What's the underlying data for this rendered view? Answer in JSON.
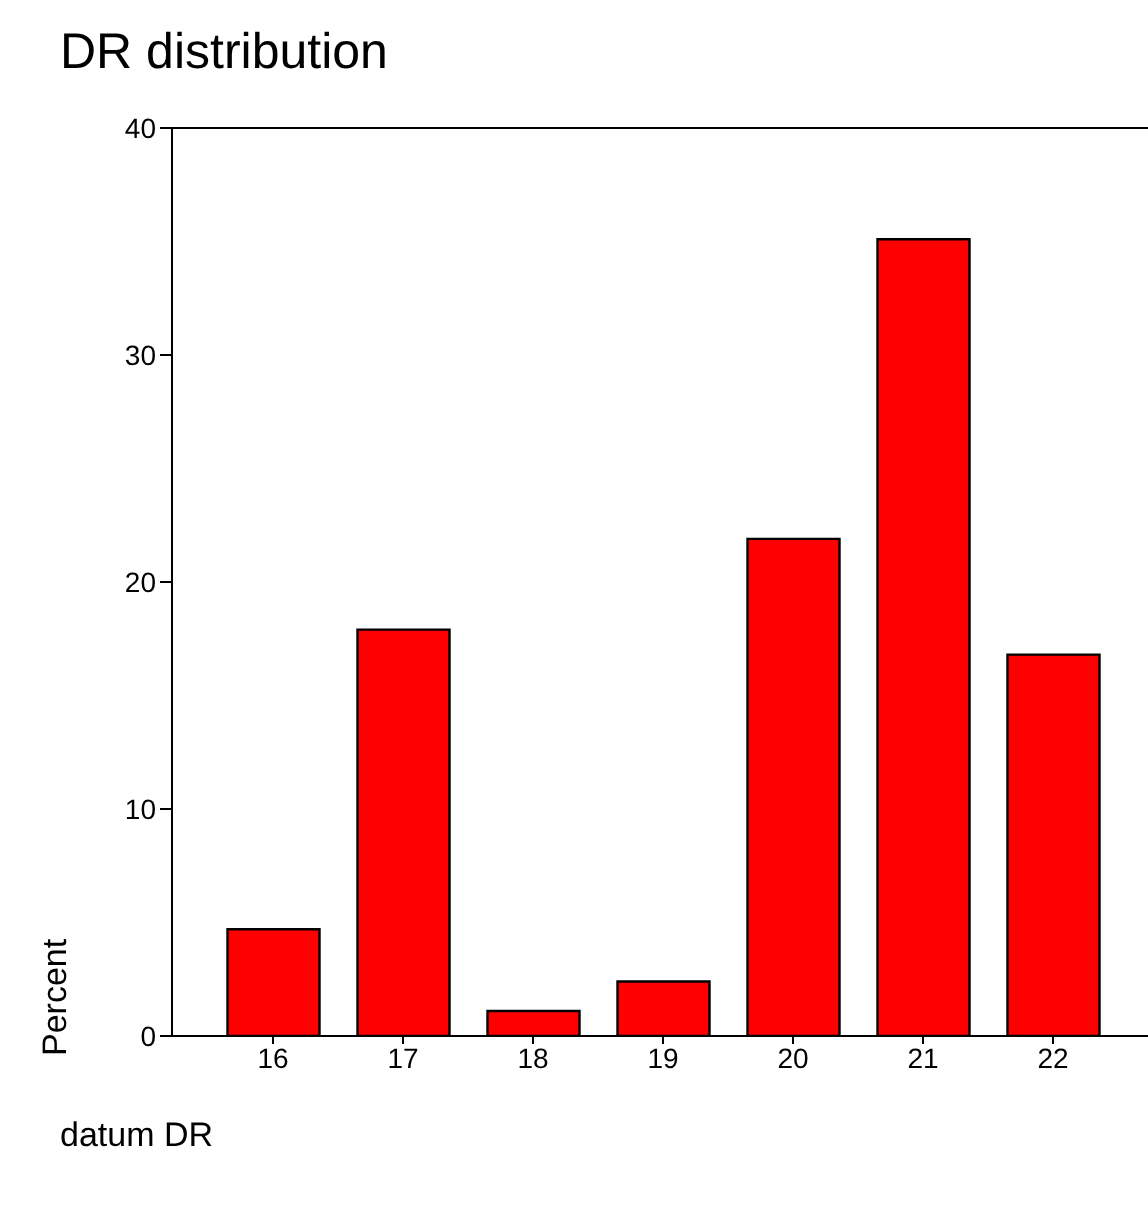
{
  "chart_data": {
    "type": "bar",
    "title": "DR distribution",
    "xlabel": "datum DR",
    "ylabel": "Percent",
    "categories": [
      "16",
      "17",
      "18",
      "19",
      "20",
      "21",
      "22"
    ],
    "values": [
      4.7,
      17.9,
      1.1,
      2.4,
      21.9,
      35.1,
      16.8
    ],
    "color": "#ff0000",
    "ylim": [
      0,
      40
    ],
    "yticks": [
      0,
      10,
      20,
      30,
      40
    ],
    "grid": false,
    "legend": false
  }
}
